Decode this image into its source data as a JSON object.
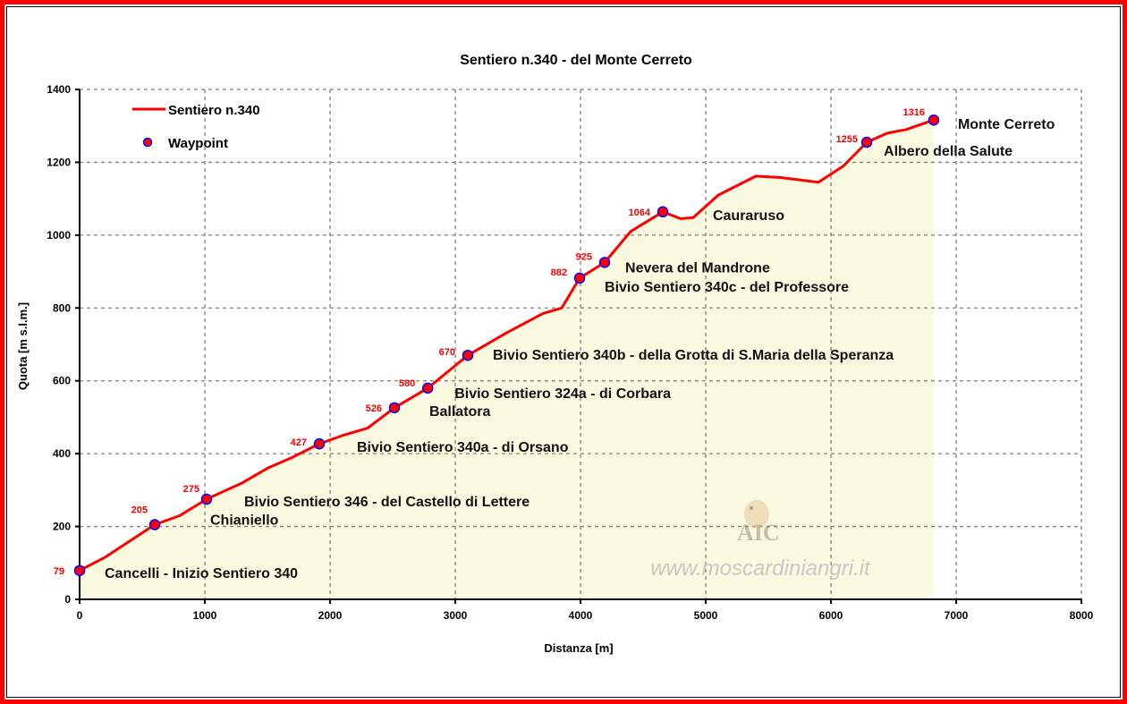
{
  "chart_data": {
    "type": "area",
    "title": "Sentiero n.340 - del Monte Cerreto",
    "xlabel": "Distanza [m]",
    "ylabel": "Quota [m s.l.m.]",
    "xlim": [
      0,
      8000
    ],
    "ylim": [
      0,
      1400
    ],
    "xticks": [
      0,
      1000,
      2000,
      3000,
      4000,
      5000,
      6000,
      7000,
      8000
    ],
    "yticks": [
      0,
      200,
      400,
      600,
      800,
      1000,
      1200,
      1400
    ],
    "grid": true,
    "legend_placement": "top-left",
    "colors": {
      "line": "#ff0000",
      "fill": "#fafae0",
      "marker_fill": "#ff0000",
      "marker_edge": "#0000ff",
      "value_label": "#ff0000"
    },
    "series": [
      {
        "name": "Sentiero n.340",
        "x": [
          0,
          200,
          400,
          600,
          800,
          1014,
          1300,
          1500,
          1700,
          1914,
          2100,
          2300,
          2514,
          2780,
          3100,
          3400,
          3700,
          3850,
          3993,
          4193,
          4400,
          4657,
          4800,
          4900,
          5100,
          5400,
          5600,
          5900,
          6100,
          6286,
          6450,
          6600,
          6821
        ],
        "y": [
          79,
          115,
          160,
          205,
          230,
          275,
          320,
          360,
          390,
          427,
          450,
          470,
          526,
          580,
          670,
          730,
          785,
          800,
          882,
          925,
          1010,
          1064,
          1045,
          1048,
          1110,
          1162,
          1158,
          1145,
          1190,
          1255,
          1280,
          1290,
          1316
        ]
      },
      {
        "name": "Waypoint",
        "points": [
          {
            "x": 0,
            "y": 79,
            "label": "79",
            "name": "Cancelli - Inizio Sentiero 340"
          },
          {
            "x": 600,
            "y": 205,
            "label": "205",
            "name": "Chianiello"
          },
          {
            "x": 1014,
            "y": 275,
            "label": "275",
            "name": "Bivio Sentiero 346 - del Castello di Lettere"
          },
          {
            "x": 1914,
            "y": 427,
            "label": "427",
            "name": "Bivio Sentiero 340a - di Orsano"
          },
          {
            "x": 2514,
            "y": 526,
            "label": "526",
            "name": "Ballatora"
          },
          {
            "x": 2780,
            "y": 580,
            "label": "580",
            "name": "Bivio Sentiero 324a - di Corbara"
          },
          {
            "x": 3100,
            "y": 670,
            "label": "670",
            "name": "Bivio Sentiero 340b - della Grotta di S.Maria della Speranza"
          },
          {
            "x": 3993,
            "y": 882,
            "label": "882",
            "name": "Bivio Sentiero 340c - del Professore"
          },
          {
            "x": 4193,
            "y": 925,
            "label": "925",
            "name": "Nevera del Mandrone"
          },
          {
            "x": 4657,
            "y": 1064,
            "label": "1064",
            "name": "Cauraruso"
          },
          {
            "x": 6286,
            "y": 1255,
            "label": "1255",
            "name": "Albero della Salute"
          },
          {
            "x": 6821,
            "y": 1316,
            "label": "1316",
            "name": "Monte Cerreto"
          }
        ]
      }
    ],
    "watermark": "www.moscardiniangri.it",
    "logo_text": "AIC"
  }
}
